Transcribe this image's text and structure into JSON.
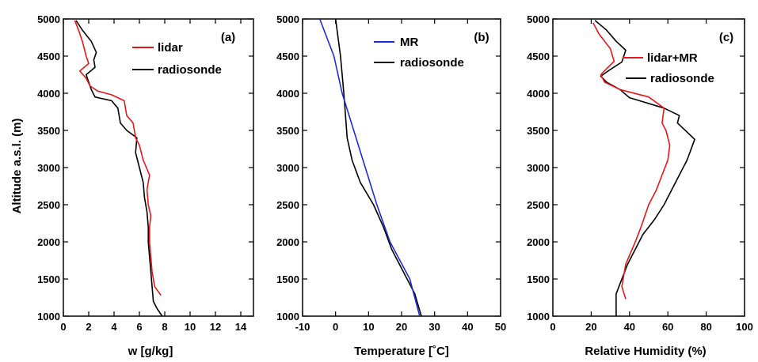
{
  "y_axis_label": "Altitude a.s.l. (m)",
  "colors": {
    "red": "#e8161b",
    "black": "#000000",
    "blue": "#1f2bd6"
  },
  "chart_data": [
    {
      "type": "line",
      "panel_label": "(a)",
      "xlabel": "w [g/kg]",
      "ylabel": "Altitude a.s.l. (m)",
      "xlim": [
        0,
        15
      ],
      "ylim": [
        1000,
        5000
      ],
      "xticks": [
        "0",
        "2",
        "4",
        "6",
        "8",
        "10",
        "12",
        "14"
      ],
      "yticks": [
        "1000",
        "1500",
        "2000",
        "2500",
        "3000",
        "3500",
        "4000",
        "4500",
        "5000"
      ],
      "legend_position": "top-right",
      "series": [
        {
          "name": "lidar",
          "color": "#e8161b",
          "points": [
            [
              7.7,
              1280
            ],
            [
              7.2,
              1400
            ],
            [
              7.0,
              1600
            ],
            [
              6.9,
              1800
            ],
            [
              6.8,
              2000
            ],
            [
              6.8,
              2200
            ],
            [
              6.9,
              2350
            ],
            [
              6.7,
              2500
            ],
            [
              6.6,
              2700
            ],
            [
              6.8,
              2900
            ],
            [
              6.3,
              3100
            ],
            [
              6.0,
              3300
            ],
            [
              5.7,
              3400
            ],
            [
              5.5,
              3600
            ],
            [
              5.0,
              3700
            ],
            [
              4.8,
              3900
            ],
            [
              3.8,
              3980
            ],
            [
              2.7,
              4030
            ],
            [
              2.1,
              4100
            ],
            [
              1.8,
              4200
            ],
            [
              1.3,
              4300
            ],
            [
              2.0,
              4400
            ],
            [
              1.8,
              4500
            ],
            [
              1.5,
              4700
            ],
            [
              1.2,
              4850
            ],
            [
              0.9,
              4980
            ]
          ]
        },
        {
          "name": "radiosonde",
          "color": "#000000",
          "points": [
            [
              7.8,
              1000
            ],
            [
              7.4,
              1100
            ],
            [
              7.1,
              1200
            ],
            [
              7.0,
              1400
            ],
            [
              6.9,
              1600
            ],
            [
              6.8,
              1800
            ],
            [
              6.7,
              2000
            ],
            [
              6.7,
              2200
            ],
            [
              6.6,
              2400
            ],
            [
              6.4,
              2600
            ],
            [
              6.3,
              2800
            ],
            [
              6.0,
              3000
            ],
            [
              5.7,
              3200
            ],
            [
              5.8,
              3400
            ],
            [
              5.0,
              3500
            ],
            [
              4.5,
              3600
            ],
            [
              4.3,
              3800
            ],
            [
              3.8,
              3900
            ],
            [
              2.5,
              3950
            ],
            [
              2.2,
              4050
            ],
            [
              2.0,
              4150
            ],
            [
              1.8,
              4250
            ],
            [
              2.5,
              4350
            ],
            [
              2.4,
              4450
            ],
            [
              2.6,
              4550
            ],
            [
              2.2,
              4700
            ],
            [
              1.5,
              4850
            ],
            [
              1.0,
              4980
            ]
          ]
        }
      ]
    },
    {
      "type": "line",
      "panel_label": "(b)",
      "xlabel": "Temperature [˚C]",
      "xlim": [
        -10,
        50
      ],
      "ylim": [
        1000,
        5000
      ],
      "xticks": [
        "-10",
        "0",
        "10",
        "20",
        "30",
        "40",
        "50"
      ],
      "yticks": [
        "1000",
        "1500",
        "2000",
        "2500",
        "3000",
        "3500",
        "4000",
        "4500",
        "5000"
      ],
      "legend_position": "top-right",
      "series": [
        {
          "name": "MR",
          "color": "#1f2bd6",
          "points": [
            [
              25.5,
              1000
            ],
            [
              22.5,
              1500
            ],
            [
              16.5,
              2000
            ],
            [
              12.5,
              2500
            ],
            [
              9.0,
              3000
            ],
            [
              5.5,
              3500
            ],
            [
              2.0,
              4000
            ],
            [
              -0.5,
              4500
            ],
            [
              -4.8,
              5000
            ]
          ]
        },
        {
          "name": "radiosonde",
          "color": "#000000",
          "points": [
            [
              26.0,
              1000
            ],
            [
              24.0,
              1300
            ],
            [
              20.5,
              1600
            ],
            [
              17.0,
              1900
            ],
            [
              14.5,
              2200
            ],
            [
              11.5,
              2500
            ],
            [
              7.5,
              2800
            ],
            [
              5.0,
              3100
            ],
            [
              3.5,
              3400
            ],
            [
              3.0,
              3700
            ],
            [
              2.5,
              4000
            ],
            [
              1.5,
              4500
            ],
            [
              0.0,
              5000
            ]
          ]
        }
      ]
    },
    {
      "type": "line",
      "panel_label": "(c)",
      "xlabel": "Relative Humidity (%)",
      "xlim": [
        0,
        100
      ],
      "ylim": [
        1000,
        5000
      ],
      "xticks": [
        "0",
        "20",
        "40",
        "60",
        "80",
        "100"
      ],
      "yticks": [
        "1000",
        "1500",
        "2000",
        "2500",
        "3000",
        "3500",
        "4000",
        "4500",
        "5000"
      ],
      "legend_position": "top-right",
      "series": [
        {
          "name": "lidar+MR",
          "color": "#e8161b",
          "points": [
            [
              38,
              1230
            ],
            [
              36,
              1400
            ],
            [
              38,
              1700
            ],
            [
              43,
              2000
            ],
            [
              46,
              2200
            ],
            [
              50,
              2500
            ],
            [
              54,
              2700
            ],
            [
              57,
              2900
            ],
            [
              60,
              3100
            ],
            [
              61,
              3300
            ],
            [
              59,
              3500
            ],
            [
              57,
              3600
            ],
            [
              58,
              3800
            ],
            [
              50,
              3950
            ],
            [
              35,
              4050
            ],
            [
              27,
              4150
            ],
            [
              25,
              4250
            ],
            [
              28,
              4330
            ],
            [
              32,
              4430
            ],
            [
              30,
              4600
            ],
            [
              24,
              4800
            ],
            [
              21,
              4950
            ]
          ]
        },
        {
          "name": "radiosonde",
          "color": "#000000",
          "points": [
            [
              33,
              1000
            ],
            [
              33,
              1300
            ],
            [
              36,
              1500
            ],
            [
              39,
              1700
            ],
            [
              43,
              1900
            ],
            [
              47,
              2100
            ],
            [
              53,
              2300
            ],
            [
              58,
              2500
            ],
            [
              62,
              2700
            ],
            [
              66,
              2900
            ],
            [
              70,
              3100
            ],
            [
              74,
              3380
            ],
            [
              65,
              3600
            ],
            [
              66,
              3700
            ],
            [
              58,
              3800
            ],
            [
              40,
              3940
            ],
            [
              35,
              4050
            ],
            [
              28,
              4150
            ],
            [
              25,
              4230
            ],
            [
              30,
              4320
            ],
            [
              36,
              4420
            ],
            [
              38,
              4580
            ],
            [
              33,
              4700
            ],
            [
              28,
              4850
            ],
            [
              22,
              4980
            ]
          ]
        }
      ]
    }
  ]
}
